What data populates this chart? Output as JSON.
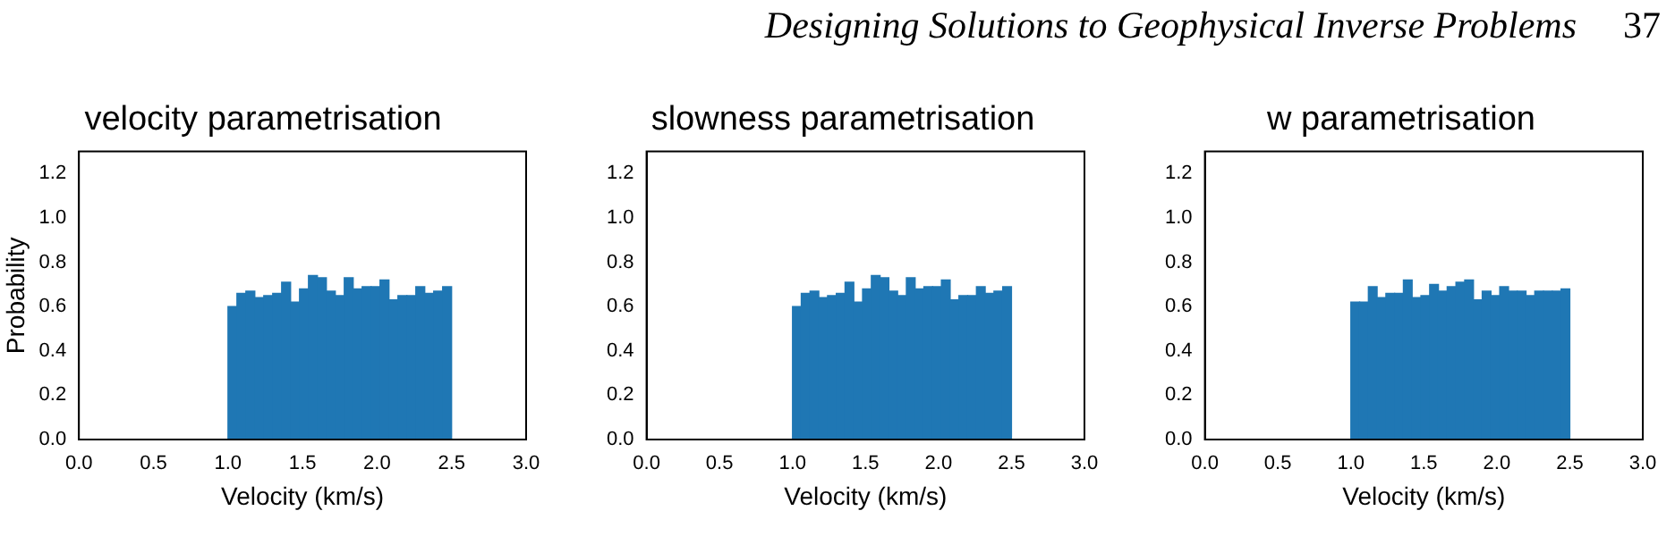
{
  "chart_data": [
    {
      "type": "histogram",
      "title": "velocity parametrisation",
      "xlabel": "Velocity (km/s)",
      "ylabel": "Probability",
      "annotations": [
        "Designing Solutions to Geophysical Inverse Problems",
        "37"
      ],
      "color": "#1f77b4",
      "grid": false,
      "bins": [
        1.0,
        1.06,
        1.12,
        1.18,
        1.24,
        1.3,
        1.36,
        1.42,
        1.48,
        1.54,
        1.6,
        1.66,
        1.72,
        1.78,
        1.84,
        1.9,
        1.96,
        2.02,
        2.08,
        2.14,
        2.2,
        2.26,
        2.32,
        2.38,
        2.44,
        2.5
      ],
      "values": [
        0.6,
        0.66,
        0.67,
        0.64,
        0.65,
        0.66,
        0.71,
        0.62,
        0.68,
        0.74,
        0.73,
        0.67,
        0.65,
        0.73,
        0.68,
        0.69,
        0.69,
        0.72,
        0.63,
        0.65,
        0.65,
        0.69,
        0.66,
        0.67,
        0.69
      ],
      "xlim": [
        0,
        3
      ],
      "xticks": [
        {
          "value": 0,
          "label": "0.0"
        },
        {
          "value": 0.5,
          "label": "0.5"
        },
        {
          "value": 1,
          "label": "1.0"
        },
        {
          "value": 1.5,
          "label": "1.5"
        },
        {
          "value": 2,
          "label": "2.0"
        },
        {
          "value": 2.5,
          "label": "2.5"
        },
        {
          "value": 3,
          "label": "3.0"
        }
      ],
      "ylim": [
        0,
        1.3
      ],
      "yticks": [
        {
          "value": 0,
          "label": "0.0"
        },
        {
          "value": 0.2,
          "label": "0.2"
        },
        {
          "value": 0.4,
          "label": "0.4"
        },
        {
          "value": 0.6,
          "label": "0.6"
        },
        {
          "value": 0.8,
          "label": "0.8"
        },
        {
          "value": 1,
          "label": "1.0"
        },
        {
          "value": 1.2,
          "label": "1.2"
        }
      ]
    },
    {
      "type": "histogram",
      "title": "slowness parametrisation",
      "xlabel": "Velocity (km/s)",
      "color": "#1f77b4",
      "grid": false,
      "bins": [
        1.0,
        1.06,
        1.12,
        1.18,
        1.24,
        1.3,
        1.36,
        1.42,
        1.48,
        1.54,
        1.6,
        1.66,
        1.72,
        1.78,
        1.84,
        1.9,
        1.96,
        2.02,
        2.08,
        2.14,
        2.2,
        2.26,
        2.32,
        2.38,
        2.44,
        2.5
      ],
      "values": [
        0.6,
        0.66,
        0.67,
        0.64,
        0.65,
        0.66,
        0.71,
        0.62,
        0.68,
        0.74,
        0.73,
        0.67,
        0.65,
        0.73,
        0.68,
        0.69,
        0.69,
        0.72,
        0.63,
        0.65,
        0.65,
        0.69,
        0.66,
        0.67,
        0.69
      ],
      "xlim": [
        0,
        3
      ],
      "xticks": [
        {
          "value": 0,
          "label": "0.0"
        },
        {
          "value": 0.5,
          "label": "0.5"
        },
        {
          "value": 1,
          "label": "1.0"
        },
        {
          "value": 1.5,
          "label": "1.5"
        },
        {
          "value": 2,
          "label": "2.0"
        },
        {
          "value": 2.5,
          "label": "2.5"
        },
        {
          "value": 3,
          "label": "3.0"
        }
      ],
      "ylim": [
        0,
        1.3
      ],
      "yticks": [
        {
          "value": 0,
          "label": "0.0"
        },
        {
          "value": 0.2,
          "label": "0.2"
        },
        {
          "value": 0.4,
          "label": "0.4"
        },
        {
          "value": 0.6,
          "label": "0.6"
        },
        {
          "value": 0.8,
          "label": "0.8"
        },
        {
          "value": 1,
          "label": "1.0"
        },
        {
          "value": 1.2,
          "label": "1.2"
        }
      ]
    },
    {
      "type": "histogram",
      "title": "w parametrisation",
      "xlabel": "Velocity (km/s)",
      "color": "#1f77b4",
      "grid": false,
      "bins": [
        1.0,
        1.06,
        1.12,
        1.18,
        1.24,
        1.3,
        1.36,
        1.42,
        1.48,
        1.54,
        1.6,
        1.66,
        1.72,
        1.78,
        1.84,
        1.9,
        1.96,
        2.02,
        2.08,
        2.14,
        2.2,
        2.26,
        2.32,
        2.38,
        2.44,
        2.5
      ],
      "values": [
        0.62,
        0.62,
        0.69,
        0.64,
        0.66,
        0.66,
        0.72,
        0.64,
        0.65,
        0.7,
        0.67,
        0.69,
        0.71,
        0.72,
        0.63,
        0.67,
        0.65,
        0.69,
        0.67,
        0.67,
        0.65,
        0.67,
        0.67,
        0.67,
        0.68
      ],
      "xlim": [
        0,
        3
      ],
      "xticks": [
        {
          "value": 0,
          "label": "0.0"
        },
        {
          "value": 0.5,
          "label": "0.5"
        },
        {
          "value": 1,
          "label": "1.0"
        },
        {
          "value": 1.5,
          "label": "1.5"
        },
        {
          "value": 2,
          "label": "2.0"
        },
        {
          "value": 2.5,
          "label": "2.5"
        },
        {
          "value": 3,
          "label": "3.0"
        }
      ],
      "ylim": [
        0,
        1.3
      ],
      "yticks": [
        {
          "value": 0,
          "label": "0.0"
        },
        {
          "value": 0.2,
          "label": "0.2"
        },
        {
          "value": 0.4,
          "label": "0.4"
        },
        {
          "value": 0.6,
          "label": "0.6"
        },
        {
          "value": 0.8,
          "label": "0.8"
        },
        {
          "value": 1,
          "label": "1.0"
        },
        {
          "value": 1.2,
          "label": "1.2"
        }
      ]
    }
  ]
}
